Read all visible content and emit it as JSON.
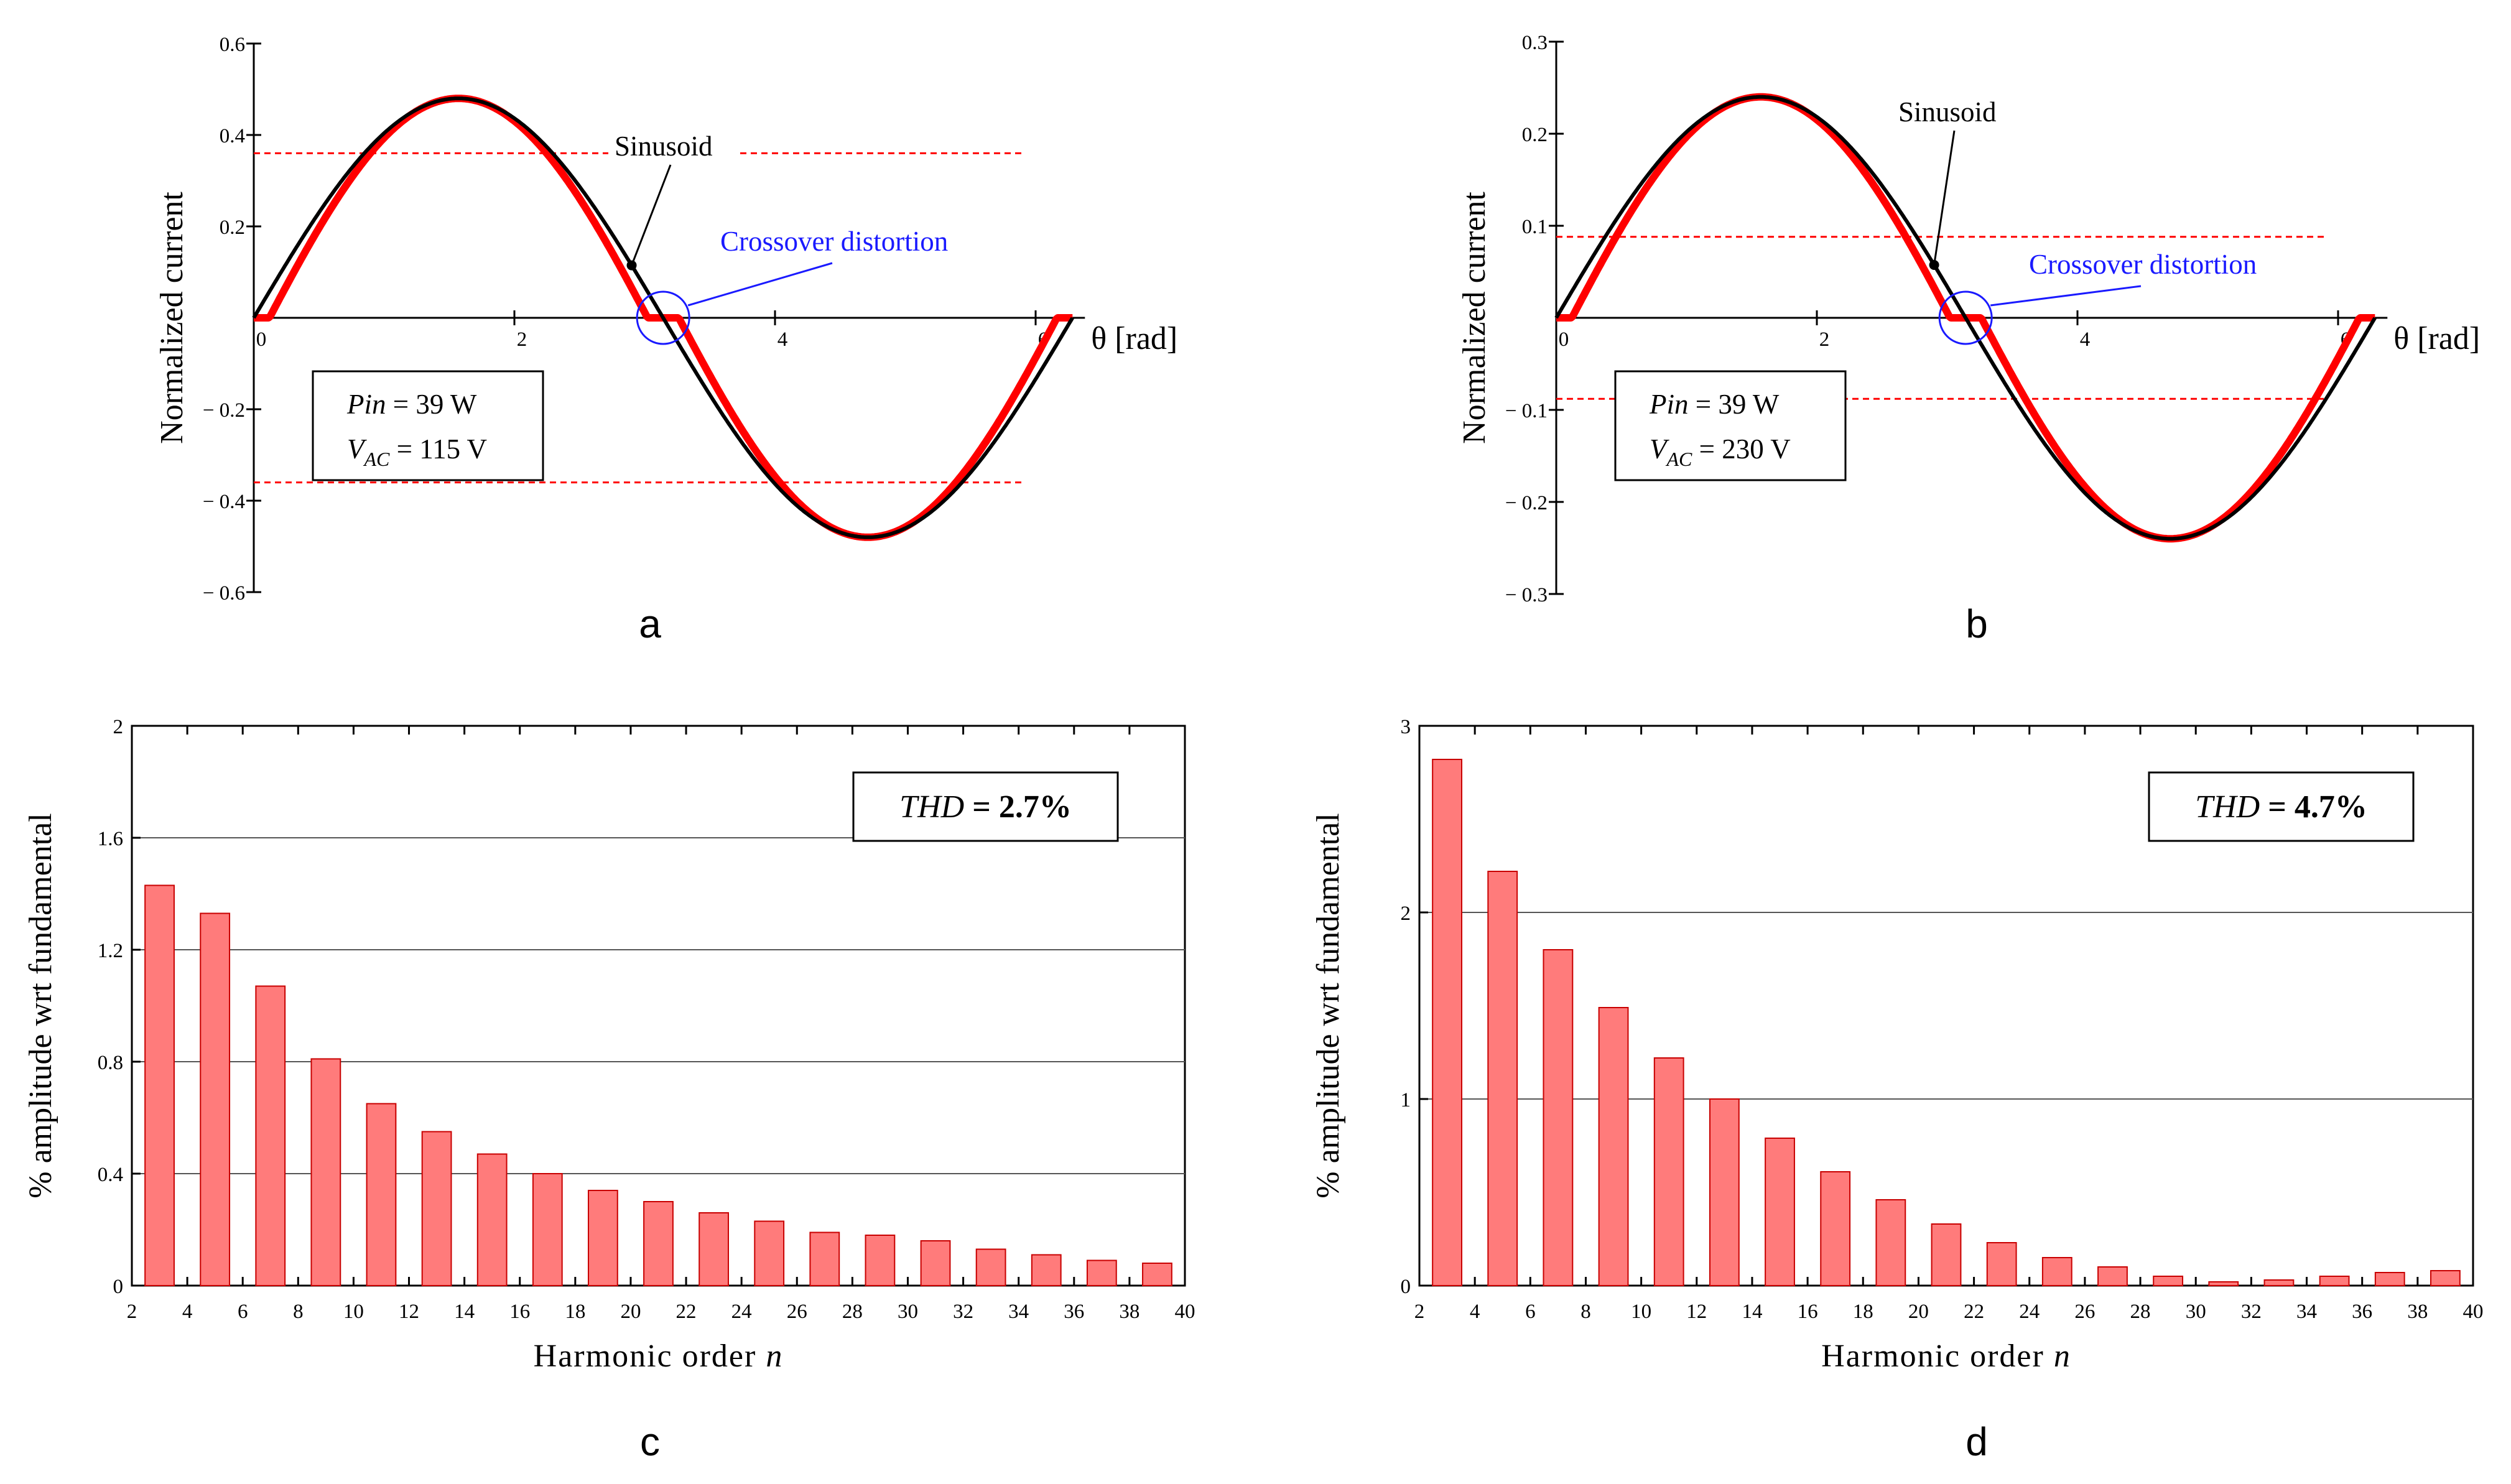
{
  "chart_data": [
    {
      "panel": "a",
      "type": "line",
      "ylabel": "Normalized current",
      "xlabel": "θ [rad]",
      "xlim": [
        0,
        6.283
      ],
      "ylim": [
        -0.6,
        0.6
      ],
      "x_ticks": [
        "0",
        "2",
        "4",
        "6"
      ],
      "y_ticks": [
        "0.6",
        "0.4",
        "0.2",
        "− 0.2",
        "− 0.4",
        "− 0.6"
      ],
      "amplitude": 0.48,
      "threshold": 0.36,
      "series": [
        {
          "name": "",
          "color": "#000000",
          "shape": "sine",
          "amplitude": 0.48
        },
        {
          "name": "",
          "color": "#ff0000",
          "shape": "sine with crossover distortion",
          "amplitude": 0.48
        }
      ],
      "annotations": {
        "sinusoid": "Sinusoid",
        "crossover": "Crossover distortion",
        "pin": "Pin",
        "pin_value": "= 39 W",
        "vac_main": "V",
        "vac_sub": "AC",
        "vac_value": "= 115 V"
      },
      "caption": "a"
    },
    {
      "panel": "b",
      "type": "line",
      "ylabel": "Normalized current",
      "xlabel": "θ [rad]",
      "xlim": [
        0,
        6.283
      ],
      "ylim": [
        -0.3,
        0.3
      ],
      "x_ticks": [
        "0",
        "2",
        "4",
        "6"
      ],
      "y_ticks": [
        "0.3",
        "0.2",
        "0.1",
        "− 0.1",
        "− 0.2",
        "− 0.3"
      ],
      "amplitude": 0.24,
      "threshold": 0.088,
      "series": [
        {
          "name": "",
          "color": "#000000",
          "shape": "sine",
          "amplitude": 0.24
        },
        {
          "name": "",
          "color": "#ff0000",
          "shape": "sine with crossover distortion",
          "amplitude": 0.24
        }
      ],
      "annotations": {
        "sinusoid": "Sinusoid",
        "crossover": "Crossover distortion",
        "pin": "Pin",
        "pin_value": "= 39 W",
        "vac_main": "V",
        "vac_sub": "AC",
        "vac_value": "= 230 V"
      },
      "caption": "b"
    },
    {
      "panel": "c",
      "type": "bar",
      "ylabel": "% amplitude wrt fundamental",
      "xlabel_main": "Harmonic order ",
      "xlabel_var": "n",
      "xlim": [
        2,
        40
      ],
      "ylim": [
        0,
        2
      ],
      "x_ticks": [
        "2",
        "4",
        "6",
        "8",
        "10",
        "12",
        "14",
        "16",
        "18",
        "20",
        "22",
        "24",
        "26",
        "28",
        "30",
        "32",
        "34",
        "36",
        "38",
        "40"
      ],
      "y_ticks": [
        "0",
        "0.4",
        "0.8",
        "1.2",
        "1.6",
        "2"
      ],
      "y_tick_values": [
        0,
        0.4,
        0.8,
        1.2,
        1.6,
        2
      ],
      "categories": [
        3,
        5,
        7,
        9,
        11,
        13,
        15,
        17,
        19,
        21,
        23,
        25,
        27,
        29,
        31,
        33,
        35,
        37,
        39
      ],
      "values": [
        1.43,
        1.33,
        1.07,
        0.81,
        0.65,
        0.55,
        0.47,
        0.4,
        0.34,
        0.3,
        0.26,
        0.23,
        0.19,
        0.18,
        0.16,
        0.13,
        0.11,
        0.09,
        0.08
      ],
      "color": "#ff7b7b",
      "thd_label": "THD",
      "thd_value": " = 2.7%",
      "caption": "c"
    },
    {
      "panel": "d",
      "type": "bar",
      "ylabel": "% amplitude wrt fundamental",
      "xlabel_main": "Harmonic order ",
      "xlabel_var": "n",
      "xlim": [
        2,
        40
      ],
      "ylim": [
        0,
        3
      ],
      "x_ticks": [
        "2",
        "4",
        "6",
        "8",
        "10",
        "12",
        "14",
        "16",
        "18",
        "20",
        "22",
        "24",
        "26",
        "28",
        "30",
        "32",
        "34",
        "36",
        "38",
        "40"
      ],
      "y_ticks": [
        "0",
        "1",
        "2",
        "3"
      ],
      "y_tick_values": [
        0,
        1,
        2,
        3
      ],
      "categories": [
        3,
        5,
        7,
        9,
        11,
        13,
        15,
        17,
        19,
        21,
        23,
        25,
        27,
        29,
        31,
        33,
        35,
        37,
        39
      ],
      "values": [
        2.82,
        2.22,
        1.8,
        1.49,
        1.22,
        1.0,
        0.79,
        0.61,
        0.46,
        0.33,
        0.23,
        0.15,
        0.1,
        0.05,
        0.02,
        0.03,
        0.05,
        0.07,
        0.08
      ],
      "color": "#ff7b7b",
      "thd_label": "THD",
      "thd_value": " = 4.7%",
      "caption": "d"
    }
  ]
}
